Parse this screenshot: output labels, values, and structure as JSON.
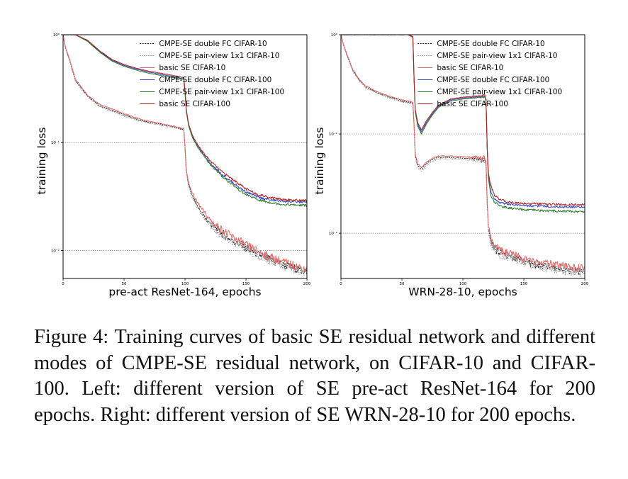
{
  "chart_data": [
    {
      "type": "line",
      "title": "",
      "xlabel": "pre-act ResNet-164, epochs",
      "ylabel": "training loss",
      "y_scale": "log",
      "xlim": [
        0,
        200
      ],
      "ylim": [
        0.0055,
        1.0
      ],
      "x_ticks": [
        0,
        50,
        100,
        150,
        200
      ],
      "y_ticks": [
        {
          "value": 1.0,
          "label": "10⁰"
        },
        {
          "value": 0.1,
          "label": "10⁻¹"
        },
        {
          "value": 0.01,
          "label": "10⁻²"
        }
      ],
      "grid": "y-major",
      "legend_position": "top-right",
      "series": [
        {
          "name": "CMPE-SE double FC CIFAR-10",
          "color": "#1f1f1f",
          "dash": "2,1.5",
          "group": "c10",
          "x": [
            0,
            2,
            5,
            10,
            20,
            30,
            40,
            50,
            60,
            70,
            80,
            90,
            99,
            100,
            101,
            103,
            106,
            110,
            115,
            120,
            125,
            130,
            135,
            140,
            145,
            150,
            160,
            170,
            180,
            190,
            200
          ],
          "y": [
            1.0,
            0.75,
            0.6,
            0.38,
            0.27,
            0.22,
            0.2,
            0.18,
            0.165,
            0.155,
            0.148,
            0.14,
            0.132,
            0.09,
            0.055,
            0.04,
            0.032,
            0.026,
            0.021,
            0.018,
            0.016,
            0.0145,
            0.0132,
            0.0122,
            0.0115,
            0.0105,
            0.0092,
            0.0082,
            0.0074,
            0.0068,
            0.0063
          ]
        },
        {
          "name": "CMPE-SE pair-view 1x1 CIFAR-10",
          "color": "#9a9a9a",
          "dash": "1.5,1.5",
          "group": "c10",
          "x": [
            0,
            2,
            5,
            10,
            20,
            30,
            40,
            50,
            60,
            70,
            80,
            90,
            99,
            100,
            101,
            103,
            106,
            110,
            115,
            120,
            125,
            130,
            135,
            140,
            145,
            150,
            160,
            170,
            180,
            190,
            200
          ],
          "y": [
            1.0,
            0.74,
            0.59,
            0.37,
            0.265,
            0.215,
            0.195,
            0.176,
            0.162,
            0.152,
            0.145,
            0.138,
            0.13,
            0.088,
            0.054,
            0.039,
            0.031,
            0.025,
            0.0205,
            0.0175,
            0.0156,
            0.0141,
            0.0129,
            0.0119,
            0.0112,
            0.0102,
            0.0089,
            0.008,
            0.0072,
            0.0066,
            0.0061
          ]
        },
        {
          "name": "basic SE CIFAR-10",
          "color": "#e06a6a",
          "dash": "",
          "group": "c10",
          "x": [
            0,
            2,
            5,
            10,
            20,
            30,
            40,
            50,
            60,
            70,
            80,
            90,
            99,
            100,
            101,
            103,
            106,
            110,
            115,
            120,
            125,
            130,
            135,
            140,
            145,
            150,
            160,
            170,
            180,
            190,
            200
          ],
          "y": [
            1.0,
            0.76,
            0.61,
            0.39,
            0.275,
            0.225,
            0.205,
            0.185,
            0.17,
            0.158,
            0.15,
            0.142,
            0.135,
            0.092,
            0.057,
            0.042,
            0.034,
            0.028,
            0.023,
            0.0195,
            0.0172,
            0.0156,
            0.0142,
            0.0131,
            0.0122,
            0.0112,
            0.0098,
            0.0087,
            0.0079,
            0.0072,
            0.0067
          ]
        },
        {
          "name": "CMPE-SE double FC CIFAR-100",
          "color": "#3a48c8",
          "dash": "",
          "group": "c100",
          "x": [
            0,
            5,
            10,
            20,
            30,
            40,
            50,
            60,
            70,
            80,
            90,
            99,
            100,
            101,
            103,
            106,
            110,
            115,
            120,
            125,
            130,
            135,
            140,
            145,
            150,
            160,
            170,
            180,
            190,
            200
          ],
          "y": [
            1.0,
            1.0,
            1.0,
            0.88,
            0.7,
            0.58,
            0.52,
            0.48,
            0.45,
            0.43,
            0.41,
            0.39,
            0.3,
            0.2,
            0.145,
            0.114,
            0.094,
            0.078,
            0.066,
            0.058,
            0.051,
            0.046,
            0.042,
            0.038,
            0.035,
            0.0312,
            0.0294,
            0.0286,
            0.0282,
            0.028
          ]
        },
        {
          "name": "CMPE-SE pair-view 1x1 CIFAR-100",
          "color": "#2e7d2e",
          "dash": "",
          "group": "c100",
          "x": [
            0,
            5,
            10,
            20,
            30,
            40,
            50,
            60,
            70,
            80,
            90,
            99,
            100,
            101,
            103,
            106,
            110,
            115,
            120,
            125,
            130,
            135,
            140,
            145,
            150,
            160,
            170,
            180,
            190,
            200
          ],
          "y": [
            1.0,
            1.0,
            1.0,
            0.87,
            0.69,
            0.57,
            0.51,
            0.47,
            0.44,
            0.42,
            0.4,
            0.385,
            0.295,
            0.197,
            0.142,
            0.112,
            0.092,
            0.076,
            0.064,
            0.056,
            0.049,
            0.044,
            0.04,
            0.036,
            0.033,
            0.0295,
            0.0278,
            0.0268,
            0.0264,
            0.0262
          ]
        },
        {
          "name": "basic SE CIFAR-100",
          "color": "#b02020",
          "dash": "",
          "group": "c100",
          "x": [
            0,
            5,
            10,
            20,
            30,
            40,
            50,
            60,
            70,
            80,
            90,
            99,
            100,
            101,
            103,
            106,
            110,
            115,
            120,
            125,
            130,
            135,
            140,
            145,
            150,
            160,
            170,
            180,
            190,
            200
          ],
          "y": [
            1.0,
            1.0,
            1.0,
            0.89,
            0.71,
            0.59,
            0.53,
            0.49,
            0.46,
            0.44,
            0.42,
            0.4,
            0.31,
            0.205,
            0.148,
            0.117,
            0.097,
            0.081,
            0.069,
            0.061,
            0.054,
            0.049,
            0.045,
            0.041,
            0.037,
            0.033,
            0.031,
            0.0298,
            0.0292,
            0.029
          ]
        }
      ]
    },
    {
      "type": "line",
      "title": "",
      "xlabel": "WRN-28-10, epochs",
      "ylabel": "training loss",
      "y_scale": "log",
      "xlim": [
        0,
        200
      ],
      "ylim": [
        0.0035,
        1.0
      ],
      "x_ticks": [
        0,
        50,
        100,
        150,
        200
      ],
      "y_ticks": [
        {
          "value": 1.0,
          "label": "10⁰"
        },
        {
          "value": 0.1,
          "label": "10⁻¹"
        },
        {
          "value": 0.01,
          "label": "10⁻²"
        }
      ],
      "grid": "y-major",
      "legend_position": "top-right",
      "series": [
        {
          "name": "CMPE-SE double FC CIFAR-10",
          "color": "#1f1f1f",
          "dash": "2,1.5",
          "group": "c10",
          "x": [
            0,
            2,
            5,
            10,
            15,
            20,
            30,
            40,
            50,
            59,
            60,
            61,
            63,
            66,
            70,
            75,
            80,
            90,
            100,
            110,
            118,
            119,
            120,
            121,
            123,
            126,
            130,
            135,
            140,
            145,
            150,
            160,
            170,
            180,
            190,
            200
          ],
          "y": [
            1.0,
            0.8,
            0.62,
            0.43,
            0.35,
            0.3,
            0.26,
            0.235,
            0.215,
            0.205,
            0.12,
            0.06,
            0.048,
            0.044,
            0.05,
            0.055,
            0.058,
            0.058,
            0.057,
            0.056,
            0.055,
            0.05,
            0.02,
            0.011,
            0.0082,
            0.007,
            0.0064,
            0.006,
            0.0058,
            0.0056,
            0.0052,
            0.0048,
            0.0046,
            0.0044,
            0.0042,
            0.0041
          ]
        },
        {
          "name": "CMPE-SE pair-view 1x1 CIFAR-10",
          "color": "#9a9a9a",
          "dash": "1.5,1.5",
          "group": "c10",
          "x": [
            0,
            2,
            5,
            10,
            15,
            20,
            30,
            40,
            50,
            59,
            60,
            61,
            63,
            66,
            70,
            75,
            80,
            90,
            100,
            110,
            118,
            119,
            120,
            121,
            123,
            126,
            130,
            135,
            140,
            145,
            150,
            160,
            170,
            180,
            190,
            200
          ],
          "y": [
            1.0,
            0.79,
            0.61,
            0.42,
            0.345,
            0.295,
            0.255,
            0.23,
            0.21,
            0.2,
            0.118,
            0.058,
            0.046,
            0.042,
            0.048,
            0.053,
            0.056,
            0.056,
            0.055,
            0.054,
            0.053,
            0.048,
            0.019,
            0.0105,
            0.0078,
            0.0067,
            0.0061,
            0.0057,
            0.0055,
            0.0053,
            0.0049,
            0.0046,
            0.0044,
            0.0042,
            0.004,
            0.0039
          ]
        },
        {
          "name": "basic SE CIFAR-10",
          "color": "#e06a6a",
          "dash": "",
          "group": "c10",
          "x": [
            0,
            2,
            5,
            10,
            15,
            20,
            30,
            40,
            50,
            59,
            60,
            61,
            63,
            66,
            70,
            75,
            80,
            90,
            100,
            110,
            118,
            119,
            120,
            121,
            123,
            126,
            130,
            135,
            140,
            145,
            150,
            160,
            170,
            180,
            190,
            200
          ],
          "y": [
            1.0,
            0.81,
            0.63,
            0.44,
            0.355,
            0.305,
            0.265,
            0.24,
            0.22,
            0.21,
            0.123,
            0.062,
            0.05,
            0.046,
            0.052,
            0.057,
            0.06,
            0.06,
            0.059,
            0.058,
            0.057,
            0.052,
            0.021,
            0.0115,
            0.0086,
            0.0074,
            0.0068,
            0.0064,
            0.0061,
            0.0059,
            0.0055,
            0.0051,
            0.0049,
            0.0047,
            0.0045,
            0.0044
          ]
        },
        {
          "name": "CMPE-SE double FC CIFAR-100",
          "color": "#3a48c8",
          "dash": "",
          "group": "c100",
          "x": [
            0,
            5,
            10,
            20,
            30,
            40,
            50,
            55,
            59,
            60,
            61,
            63,
            66,
            70,
            75,
            80,
            90,
            100,
            110,
            118,
            119,
            120,
            121,
            123,
            126,
            130,
            135,
            140,
            145,
            150,
            160,
            170,
            180,
            190,
            200
          ],
          "y": [
            1.0,
            1.0,
            1.0,
            1.0,
            1.0,
            1.0,
            1.0,
            1.0,
            0.95,
            0.35,
            0.17,
            0.125,
            0.105,
            0.13,
            0.16,
            0.19,
            0.22,
            0.23,
            0.235,
            0.24,
            0.22,
            0.07,
            0.037,
            0.026,
            0.022,
            0.0205,
            0.0198,
            0.0195,
            0.0192,
            0.019,
            0.0188,
            0.0186,
            0.0185,
            0.0184,
            0.0183
          ]
        },
        {
          "name": "CMPE-SE pair-view 1x1 CIFAR-100",
          "color": "#2e7d2e",
          "dash": "",
          "group": "c100",
          "x": [
            0,
            5,
            10,
            20,
            30,
            40,
            50,
            55,
            59,
            60,
            61,
            63,
            66,
            70,
            75,
            80,
            90,
            100,
            110,
            118,
            119,
            120,
            121,
            123,
            126,
            130,
            135,
            140,
            145,
            150,
            160,
            170,
            180,
            190,
            200
          ],
          "y": [
            1.0,
            1.0,
            1.0,
            1.0,
            1.0,
            1.0,
            1.0,
            1.0,
            0.94,
            0.34,
            0.165,
            0.12,
            0.1,
            0.125,
            0.155,
            0.185,
            0.215,
            0.225,
            0.23,
            0.235,
            0.215,
            0.068,
            0.035,
            0.024,
            0.0205,
            0.019,
            0.0182,
            0.0178,
            0.0175,
            0.0172,
            0.017,
            0.0168,
            0.0167,
            0.0166,
            0.0165
          ]
        },
        {
          "name": "basic SE CIFAR-100",
          "color": "#b02020",
          "dash": "",
          "group": "c100",
          "x": [
            0,
            5,
            10,
            20,
            30,
            40,
            50,
            55,
            59,
            60,
            61,
            63,
            66,
            70,
            75,
            80,
            90,
            100,
            110,
            118,
            119,
            120,
            121,
            123,
            126,
            130,
            135,
            140,
            145,
            150,
            160,
            170,
            180,
            190,
            200
          ],
          "y": [
            1.0,
            1.0,
            1.0,
            1.0,
            1.0,
            1.0,
            1.0,
            1.0,
            0.96,
            0.36,
            0.175,
            0.13,
            0.11,
            0.135,
            0.165,
            0.195,
            0.225,
            0.235,
            0.24,
            0.245,
            0.225,
            0.073,
            0.04,
            0.03,
            0.024,
            0.022,
            0.021,
            0.0205,
            0.0202,
            0.02,
            0.0198,
            0.0196,
            0.0195,
            0.0194,
            0.0193
          ]
        }
      ]
    }
  ],
  "caption": "Figure 4: Training curves of basic SE residual network and different modes of CMPE-SE residual network, on CIFAR-10 and CIFAR-100. Left: different version of SE pre-act ResNet-164 for 200 epochs. Right: different version of SE WRN-28-10 for 200 epochs."
}
